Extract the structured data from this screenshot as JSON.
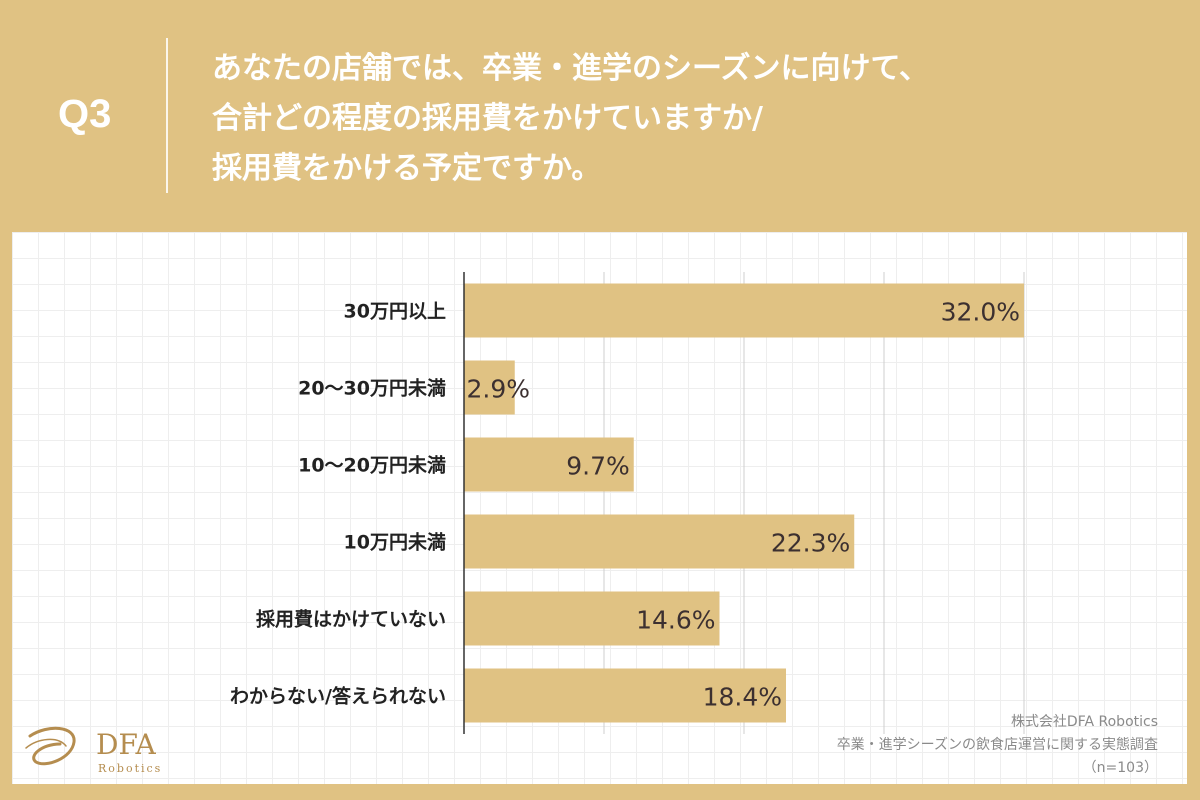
{
  "header": {
    "question_label": "Q3",
    "title_lines": [
      "あなたの店舗では、卒業・進学のシーズンに向けて、",
      "合計どの程度の採用費をかけていますか/",
      "採用費をかける予定ですか。"
    ]
  },
  "colors": {
    "background": "#e0c283",
    "bar": "#e0c283",
    "bar_label": "#3c3030",
    "axis": "#333333",
    "gridline": "#cfcfcf",
    "logo_text": "#b58d4f"
  },
  "chart_data": {
    "type": "bar",
    "orientation": "horizontal",
    "title": "",
    "categories": [
      "30万円以上",
      "20〜30万円未満",
      "10〜20万円未満",
      "10万円未満",
      "採用費はかけていない",
      "わからない/答えられない"
    ],
    "values": [
      32.0,
      2.9,
      9.7,
      22.3,
      14.6,
      18.4
    ],
    "value_labels": [
      "32.0%",
      "2.9%",
      "9.7%",
      "22.3%",
      "14.6%",
      "18.4%"
    ],
    "unit": "%",
    "xlim": [
      0,
      32
    ],
    "gridlines_at": [
      8,
      16,
      24,
      32
    ],
    "xlabel": "",
    "ylabel": ""
  },
  "logo": {
    "name": "DFA",
    "sub": "Robotics"
  },
  "source": {
    "company": "株式会社DFA Robotics",
    "survey": "卒業・進学シーズンの飲食店運営に関する実態調査",
    "sample": "（n=103）"
  }
}
